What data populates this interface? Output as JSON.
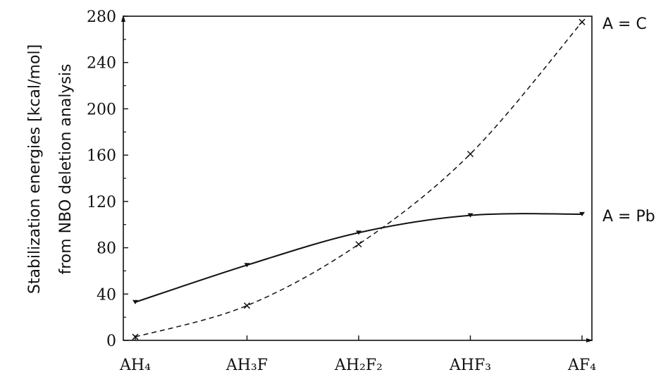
{
  "chart_data": {
    "type": "line",
    "title": "",
    "xlabel": "",
    "ylabel": [
      "Stabilization energies [kcal/mol]",
      "from NBO deletion analysis"
    ],
    "categories": [
      "AH₄",
      "AH₃F",
      "AH₂F₂",
      "AHF₃",
      "AF₄"
    ],
    "ylim": [
      0,
      280
    ],
    "yticks": [
      0,
      40,
      80,
      120,
      160,
      200,
      240,
      280
    ],
    "grid": false,
    "legend": "none",
    "series": [
      {
        "name": "A = C",
        "values": [
          3,
          30,
          83,
          161,
          275
        ],
        "style": "dashed",
        "marker": "x"
      },
      {
        "name": "A = Pb",
        "values": [
          33,
          65,
          93,
          108,
          109
        ],
        "style": "solid",
        "marker": "triangle-down"
      }
    ]
  }
}
